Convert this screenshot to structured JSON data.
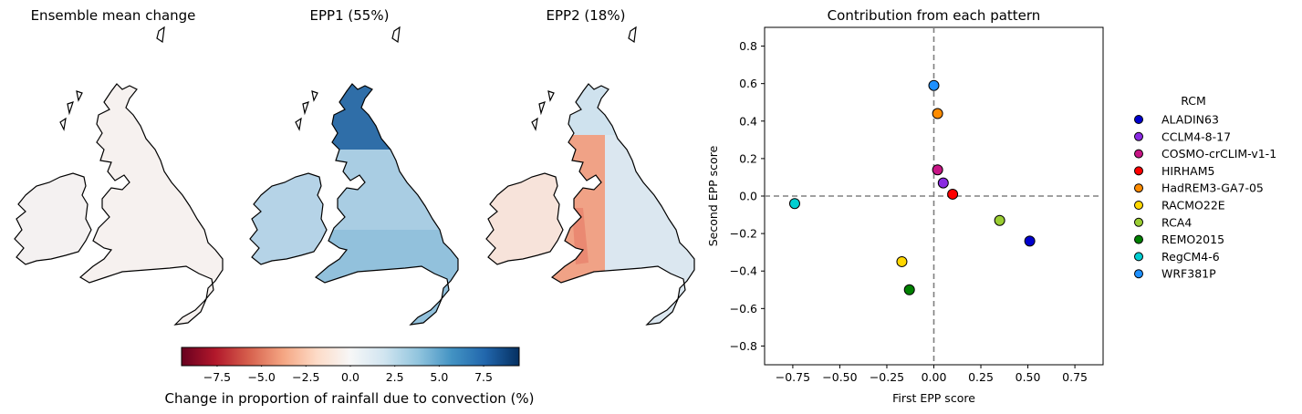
{
  "maps": {
    "titles": [
      "Ensemble mean change",
      "EPP1 (55%)",
      "EPP2 (18%)"
    ]
  },
  "colorbar": {
    "label": "Change in proportion of rainfall due to convection (%)",
    "ticks": [
      "−7.5",
      "−5.0",
      "−2.5",
      "0.0",
      "2.5",
      "5.0",
      "7.5"
    ],
    "tick_values": [
      -7.5,
      -5.0,
      -2.5,
      0.0,
      2.5,
      5.0,
      7.5
    ],
    "range": [
      -9.5,
      9.5
    ],
    "colormap": "RdBu",
    "colors": {
      "neg": "#67001f",
      "mid": "#f7f7f7",
      "pos": "#053061"
    }
  },
  "chart_data": {
    "type": "scatter",
    "title": "Contribution from each pattern",
    "xlabel": "First EPP score",
    "ylabel": "Second EPP score",
    "xlim": [
      -0.9,
      0.9
    ],
    "ylim": [
      -0.9,
      0.9
    ],
    "xticks": [
      -0.75,
      -0.5,
      -0.25,
      0.0,
      0.25,
      0.5,
      0.75
    ],
    "xtick_labels": [
      "−0.75",
      "−0.50",
      "−0.25",
      "0.00",
      "0.25",
      "0.50",
      "0.75"
    ],
    "yticks": [
      -0.8,
      -0.6,
      -0.4,
      -0.2,
      0.0,
      0.2,
      0.4,
      0.6,
      0.8
    ],
    "ytick_labels": [
      "−0.8",
      "−0.6",
      "−0.4",
      "−0.2",
      "0.0",
      "0.2",
      "0.4",
      "0.6",
      "0.8"
    ],
    "reference_lines": {
      "x": 0,
      "y": 0,
      "style": "dashed",
      "color": "#808080"
    },
    "legend": {
      "title": "RCM",
      "placement": "right"
    },
    "series": [
      {
        "name": "ALADIN63",
        "color": "#0000cd",
        "x": 0.51,
        "y": -0.24
      },
      {
        "name": "CCLM4-8-17",
        "color": "#8a2be2",
        "x": 0.05,
        "y": 0.07
      },
      {
        "name": "COSMO-crCLIM-v1-1",
        "color": "#c71585",
        "x": 0.02,
        "y": 0.14
      },
      {
        "name": "HIRHAM5",
        "color": "#ff0000",
        "x": 0.1,
        "y": 0.01
      },
      {
        "name": "HadREM3-GA7-05",
        "color": "#ff8c00",
        "x": 0.02,
        "y": 0.44
      },
      {
        "name": "RACMO22E",
        "color": "#ffd700",
        "x": -0.17,
        "y": -0.35
      },
      {
        "name": "RCA4",
        "color": "#9acd32",
        "x": 0.35,
        "y": -0.13
      },
      {
        "name": "REMO2015",
        "color": "#008000",
        "x": -0.13,
        "y": -0.5
      },
      {
        "name": "RegCM4-6",
        "color": "#00ced1",
        "x": -0.74,
        "y": -0.04
      },
      {
        "name": "WRF381P",
        "color": "#1e90ff",
        "x": 0.0,
        "y": 0.59
      }
    ]
  }
}
